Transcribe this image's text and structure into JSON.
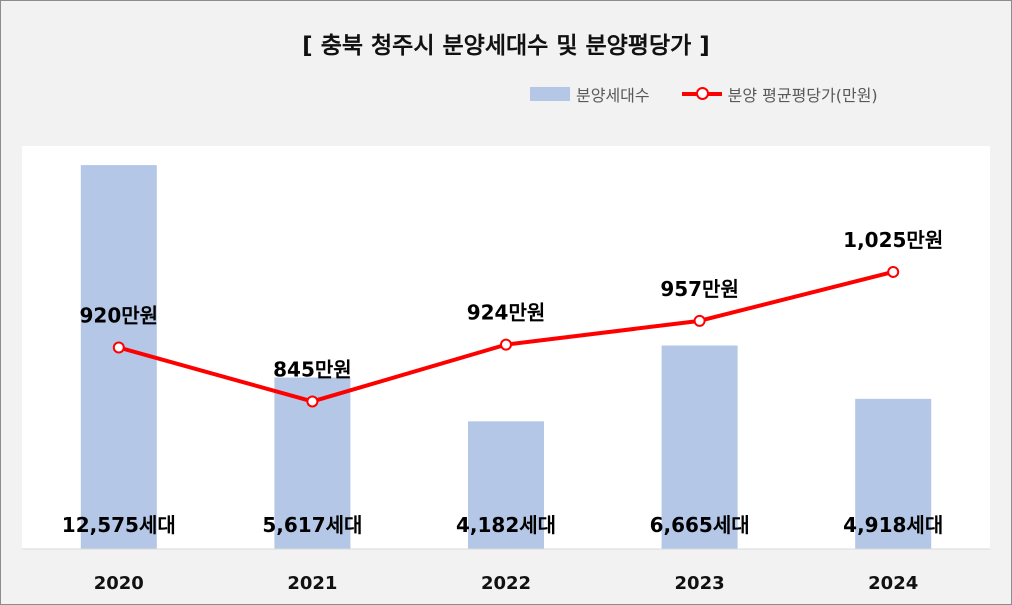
{
  "chart_data": {
    "type": "bar",
    "title": "[ 충북 청주시 분양세대수 및 분양평당가 ]",
    "categories": [
      "2020",
      "2021",
      "2022",
      "2023",
      "2024"
    ],
    "series": [
      {
        "name": "분양세대수",
        "type": "bar",
        "values": [
          12575,
          5617,
          4182,
          6665,
          4918
        ],
        "labels": [
          "12,575세대",
          "5,617세대",
          "4,182세대",
          "6,665세대",
          "4,918세대"
        ],
        "color": "#b4c7e7"
      },
      {
        "name": "분양 평균평당가(만원)",
        "type": "line",
        "values": [
          920,
          845,
          924,
          957,
          1025
        ],
        "labels": [
          "920만원",
          "845만원",
          "924만원",
          "957만원",
          "1,025만원"
        ],
        "color": "#ff0000"
      }
    ],
    "legend": "top-right",
    "grid": false
  }
}
